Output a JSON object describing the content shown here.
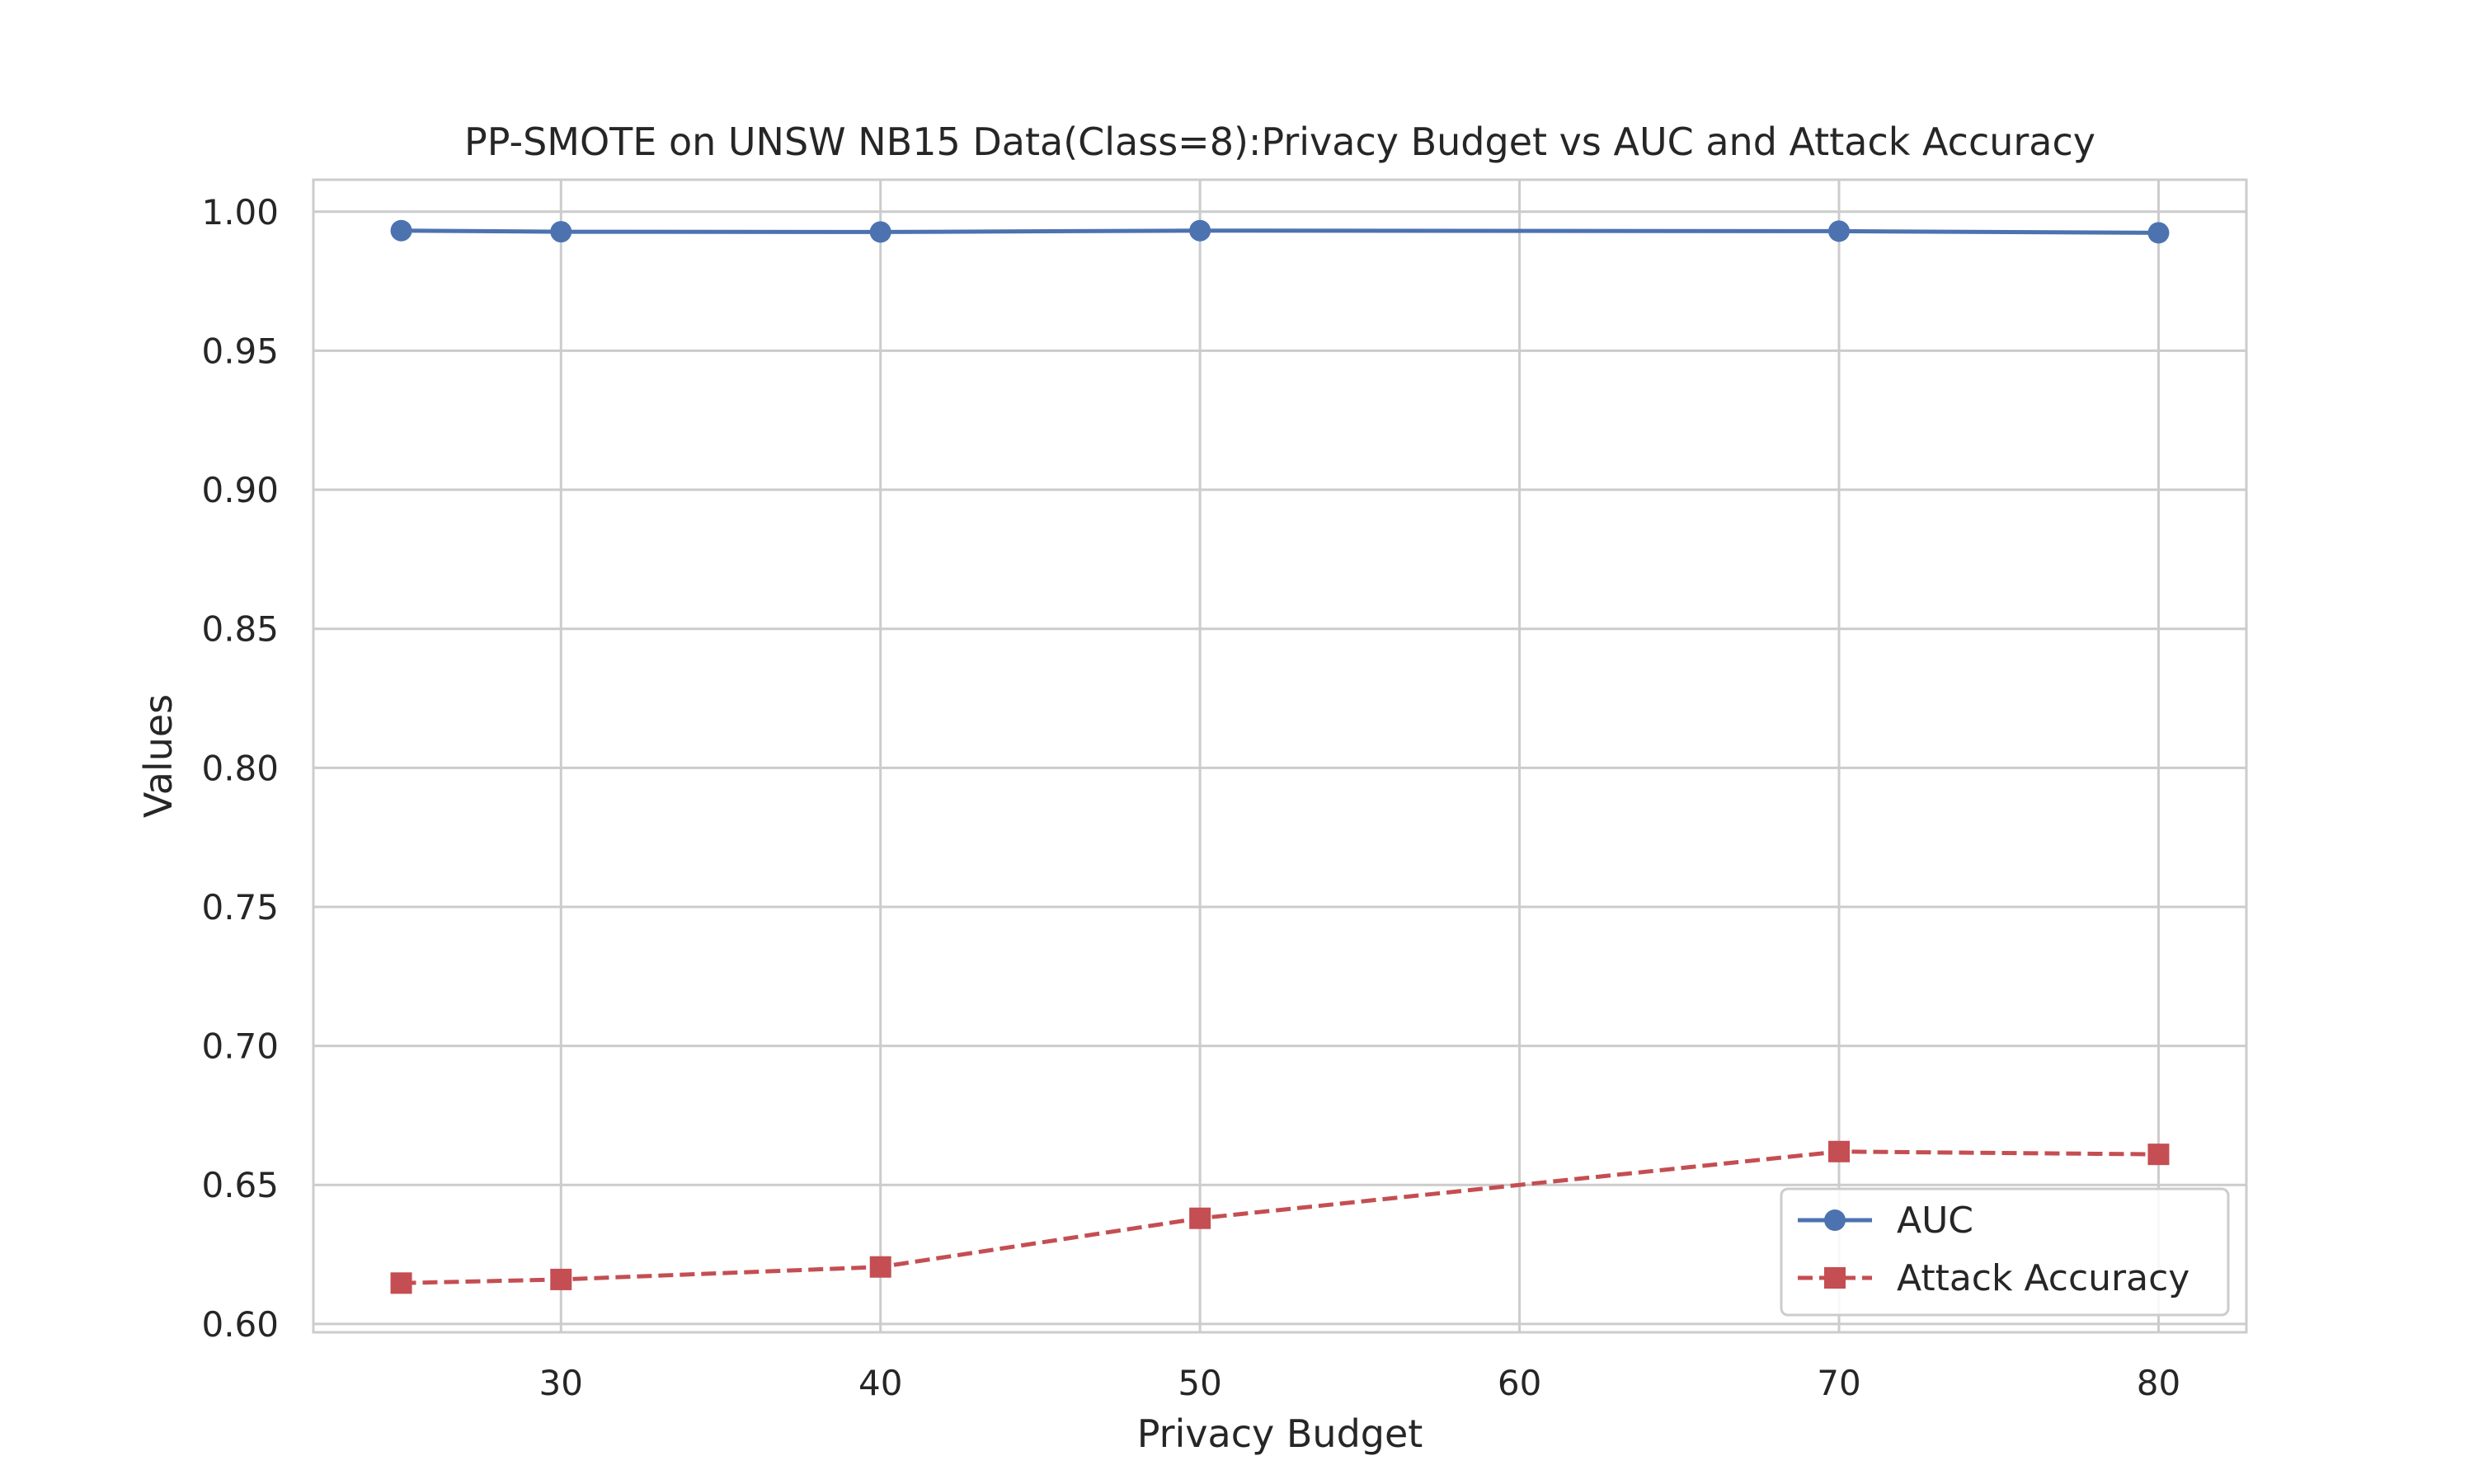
{
  "chart_data": {
    "type": "line",
    "title": "PP-SMOTE on UNSW NB15 Data(Class=8):Privacy Budget vs AUC and Attack Accuracy",
    "xlabel": "Privacy Budget",
    "ylabel": "Values",
    "x": [
      25,
      30,
      40,
      50,
      70,
      80
    ],
    "xlim": [
      22.25,
      82.75
    ],
    "ylim": [
      0.597,
      1.0115
    ],
    "xticks": [
      30,
      40,
      50,
      60,
      70,
      80
    ],
    "yticks": [
      0.6,
      0.65,
      0.7,
      0.75,
      0.8,
      0.85,
      0.9,
      0.95,
      1.0
    ],
    "grid": true,
    "legend_position": "lower-right",
    "series": [
      {
        "name": "AUC",
        "values": [
          0.9932,
          0.9928,
          0.9927,
          0.9932,
          0.993,
          0.9924
        ],
        "color": "#4c72b0",
        "line_style": "solid",
        "marker": "circle"
      },
      {
        "name": "Attack Accuracy",
        "values": [
          0.6147,
          0.616,
          0.6205,
          0.638,
          0.662,
          0.661
        ],
        "color": "#c44e52",
        "line_style": "dashed",
        "marker": "square"
      }
    ]
  }
}
